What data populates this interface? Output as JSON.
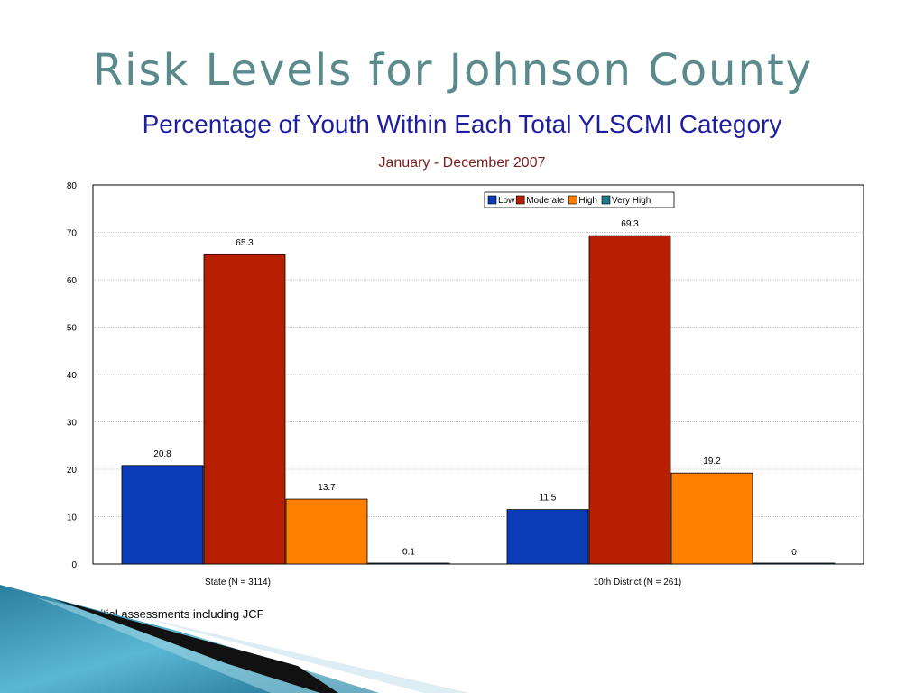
{
  "slide": {
    "title": "Risk Levels for Johnson County",
    "subtitle": "Percentage of Youth Within Each Total YLSCMI Category",
    "footnote": "*All initial assessments including JCF"
  },
  "colors": {
    "title": "#5b8a8c",
    "subtitle": "#1f1f9e",
    "chart_subtitle": "#7a1f1f"
  },
  "chart_data": {
    "type": "bar",
    "title": "",
    "subtitle": "January - December 2007",
    "xlabel": "",
    "ylabel": "",
    "categories": [
      "State (N = 3114)",
      "10th District (N = 261)"
    ],
    "series": [
      {
        "name": "Low",
        "values": [
          20.8,
          11.5
        ],
        "color": "#0a3cb8"
      },
      {
        "name": "Moderate",
        "values": [
          65.3,
          69.3
        ],
        "color": "#b81f00"
      },
      {
        "name": "High",
        "values": [
          13.7,
          19.2
        ],
        "color": "#ff8000"
      },
      {
        "name": "Very High",
        "values": [
          0.1,
          0
        ],
        "color": "#1f7a8a"
      }
    ],
    "data_labels": [
      [
        "20.8",
        "11.5"
      ],
      [
        "65.3",
        "69.3"
      ],
      [
        "13.7",
        "19.2"
      ],
      [
        "0.1",
        "0"
      ]
    ],
    "ylim": [
      0,
      80
    ],
    "yticks": [
      "0",
      "10",
      "20",
      "30",
      "40",
      "50",
      "60",
      "70",
      "80"
    ],
    "grid": true,
    "legend_position": "top-right"
  }
}
